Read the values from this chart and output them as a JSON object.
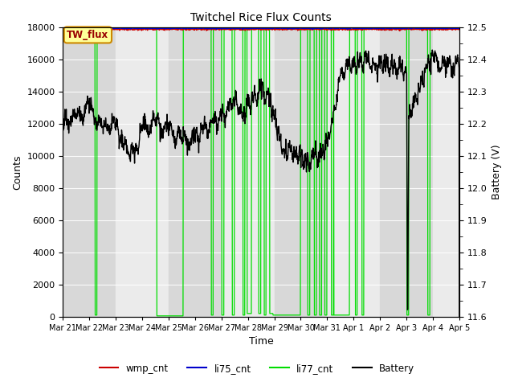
{
  "title": "Twitchel Rice Flux Counts",
  "xlabel": "Time",
  "ylabel_left": "Counts",
  "ylabel_right": "Battery (V)",
  "ylim_left": [
    0,
    18000
  ],
  "ylim_right": [
    11.6,
    12.5
  ],
  "yticks_left": [
    0,
    2000,
    4000,
    6000,
    8000,
    10000,
    12000,
    14000,
    16000,
    18000
  ],
  "yticks_right": [
    11.6,
    11.7,
    11.8,
    11.9,
    12.0,
    12.1,
    12.2,
    12.3,
    12.4,
    12.5
  ],
  "xtick_labels": [
    "Mar 21",
    "Mar 22",
    "Mar 23",
    "Mar 24",
    "Mar 25",
    "Mar 26",
    "Mar 27",
    "Mar 28",
    "Mar 29",
    "Mar 30",
    "Mar 31",
    "Apr 1",
    "Apr 2",
    "Apr 3",
    "Apr 4",
    "Apr 5"
  ],
  "bg_color": "#e8e8e8",
  "stripe_dark": "#d8d8d8",
  "stripe_light": "#ebebeb",
  "wmp_color": "#cc0000",
  "li75_color": "#0000cc",
  "li77_color": "#00dd00",
  "battery_color": "#000000",
  "annotation_text": "TW_flux",
  "annotation_bg": "#ffff99",
  "annotation_border": "#cc8800",
  "annotation_text_color": "#990000",
  "figsize": [
    6.4,
    4.8
  ],
  "dpi": 100
}
